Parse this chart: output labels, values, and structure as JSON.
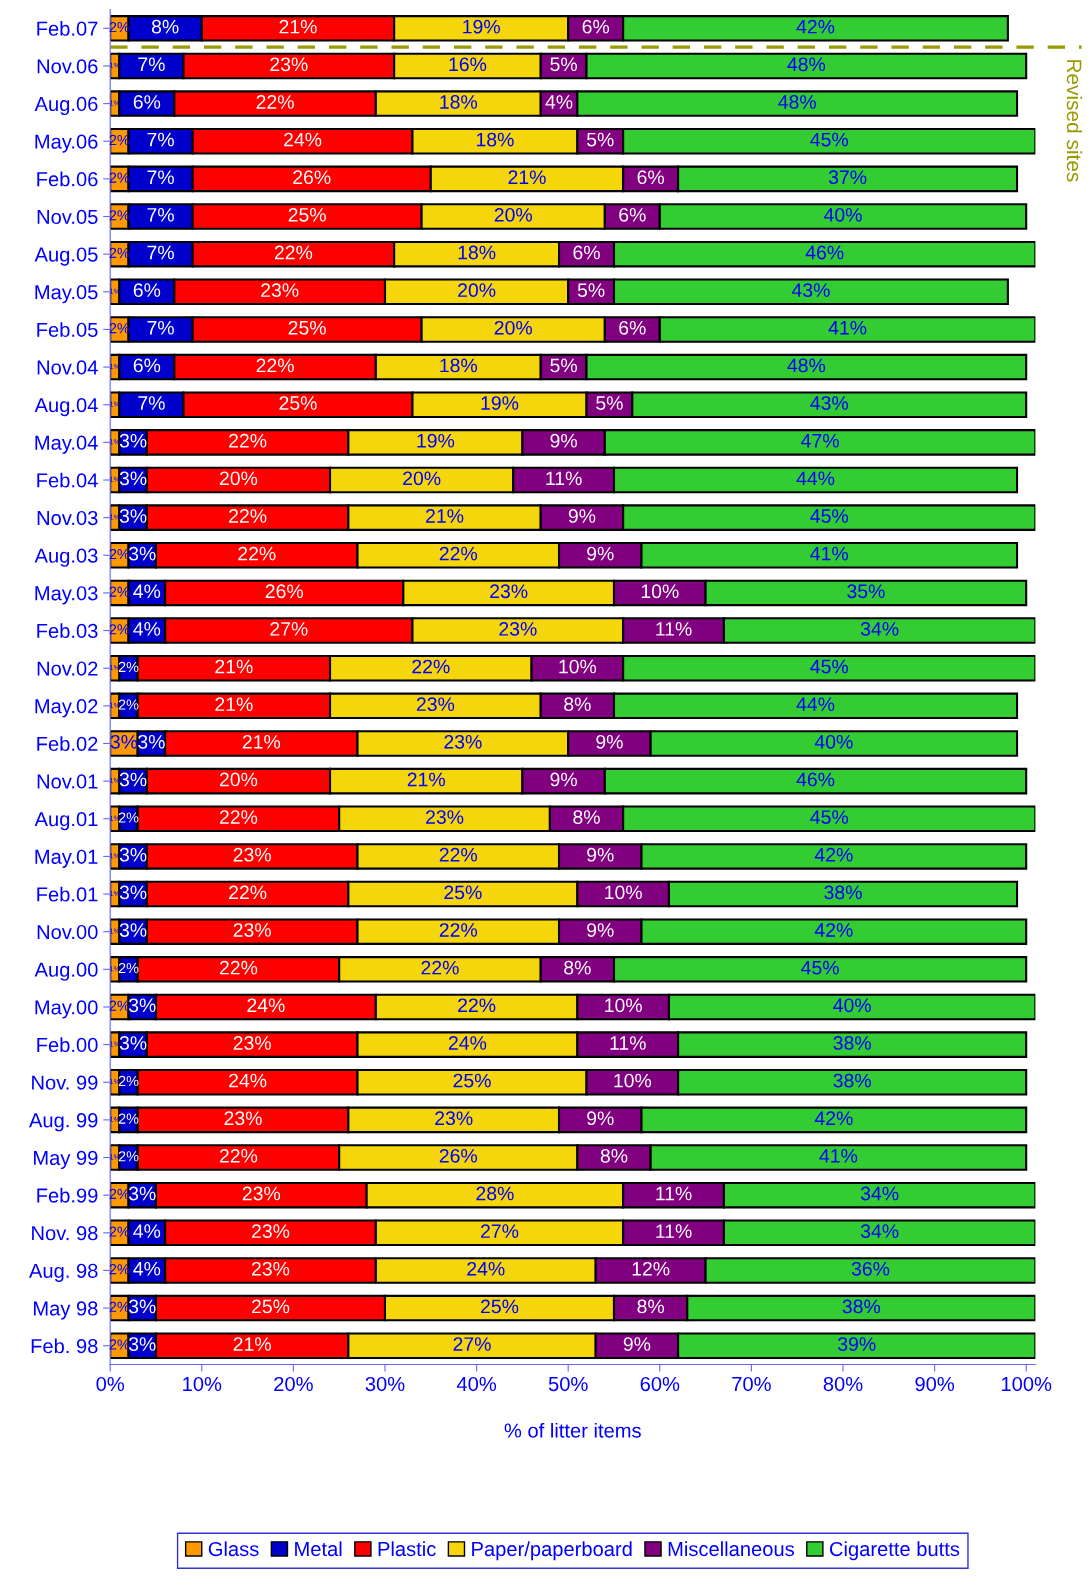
{
  "chart_data": {
    "type": "bar",
    "orientation": "horizontal",
    "stacked": true,
    "categories": [
      "Feb.07",
      "Nov.06",
      "Aug.06",
      "May.06",
      "Feb.06",
      "Nov.05",
      "Aug.05",
      "May.05",
      "Feb.05",
      "Nov.04",
      "Aug.04",
      "May.04",
      "Feb.04",
      "Nov.03",
      "Aug.03",
      "May.03",
      "Feb.03",
      "Nov.02",
      "May.02",
      "Feb.02",
      "Nov.01",
      "Aug.01",
      "May.01",
      "Feb.01",
      "Nov.00",
      "Aug.00",
      "May.00",
      "Feb.00",
      "Nov. 99",
      "Aug. 99",
      "May 99",
      "Feb.99",
      "Nov. 98",
      "Aug. 98",
      "May 98",
      "Feb. 98"
    ],
    "series": [
      {
        "name": "Glass",
        "color": "#ff9900",
        "values": [
          2,
          1,
          1,
          2,
          2,
          2,
          2,
          1,
          2,
          1,
          1,
          1,
          1,
          1,
          2,
          2,
          2,
          1,
          1,
          3,
          1,
          1,
          1,
          1,
          1,
          1,
          2,
          1,
          1,
          1,
          1,
          2,
          2,
          2,
          2,
          2
        ],
        "value_labels": [
          "2%",
          "1%",
          "1%",
          "2%",
          "2%",
          "2%",
          "2%",
          "1%",
          "2%",
          "1%",
          "1%",
          "1%",
          "1%",
          "1%",
          "2%",
          "2%",
          "2%",
          "1%",
          "1%",
          "3%",
          "1%",
          "1%",
          "1%",
          "1%",
          "1%",
          "1%",
          "2%",
          "1%",
          "1%",
          "1%",
          "1%",
          "2%",
          "2%",
          "2%",
          "2%",
          "2%"
        ]
      },
      {
        "name": "Metal",
        "color": "#0000cc",
        "values": [
          8,
          7,
          6,
          7,
          7,
          7,
          7,
          6,
          7,
          6,
          7,
          3,
          3,
          3,
          3,
          4,
          4,
          2,
          2,
          3,
          3,
          2,
          3,
          3,
          3,
          2,
          3,
          3,
          2,
          2,
          2,
          3,
          4,
          4,
          3,
          3
        ],
        "value_labels": [
          "8%",
          "7%",
          "6%",
          "7%",
          "7%",
          "7%",
          "7%",
          "6%",
          "7%",
          "6%",
          "7%",
          "3%",
          "3%",
          "3%",
          "3%",
          "4%",
          "4%",
          "2%",
          "2%",
          "3%",
          "3%",
          "2%",
          "3%",
          "3%",
          "3%",
          "2%",
          "3%",
          "3%",
          "2%",
          "2%",
          "2%",
          "3%",
          "4%",
          "4%",
          "3%",
          "3%"
        ]
      },
      {
        "name": "Plastic",
        "color": "#ff0000",
        "values": [
          21,
          23,
          22,
          24,
          26,
          25,
          22,
          23,
          25,
          22,
          25,
          22,
          20,
          22,
          22,
          26,
          27,
          21,
          21,
          21,
          20,
          22,
          23,
          22,
          23,
          22,
          24,
          23,
          24,
          23,
          22,
          23,
          23,
          23,
          25,
          21
        ],
        "value_labels": [
          "21%",
          "23%",
          "22%",
          "24%",
          "26%",
          "25%",
          "22%",
          "23%",
          "25%",
          "22%",
          "25%",
          "22%",
          "20%",
          "22%",
          "22%",
          "26%",
          "27%",
          "21%",
          "21%",
          "21%",
          "20%",
          "22%",
          "23%",
          "22%",
          "23%",
          "22%",
          "24%",
          "23%",
          "24%",
          "23%",
          "22%",
          "23%",
          "23%",
          "23%",
          "25%",
          "21%"
        ]
      },
      {
        "name": "Paper/paperboard",
        "color": "#f5d60a",
        "values": [
          19,
          16,
          18,
          18,
          21,
          20,
          18,
          20,
          20,
          18,
          19,
          19,
          20,
          21,
          22,
          23,
          23,
          22,
          23,
          23,
          21,
          23,
          22,
          25,
          22,
          22,
          22,
          24,
          25,
          23,
          26,
          28,
          27,
          24,
          25,
          27
        ],
        "value_labels": [
          "19%",
          "16%",
          "18%",
          "18%",
          "21%",
          "20%",
          "18%",
          "20%",
          "20%",
          "18%",
          "19%",
          "19%",
          "20%",
          "21%",
          "22%",
          "23%",
          "23%",
          "22%",
          "23%",
          "23%",
          "21%",
          "23%",
          "22%",
          "25%",
          "22%",
          "22%",
          "22%",
          "24%",
          "25%",
          "23%",
          "26%",
          "28%",
          "27%",
          "24%",
          "25%",
          "27%"
        ]
      },
      {
        "name": "Miscellaneous",
        "color": "#800080",
        "values": [
          6,
          5,
          4,
          5,
          6,
          6,
          6,
          5,
          6,
          5,
          5,
          9,
          11,
          9,
          9,
          10,
          11,
          10,
          8,
          9,
          9,
          8,
          9,
          10,
          9,
          8,
          10,
          11,
          10,
          9,
          8,
          11,
          11,
          12,
          8,
          9
        ],
        "value_labels": [
          "6%",
          "5%",
          "4%",
          "5%",
          "6%",
          "6%",
          "6%",
          "5%",
          "6%",
          "5%",
          "5%",
          "9%",
          "11%",
          "9%",
          "9%",
          "10%",
          "11%",
          "10%",
          "8%",
          "9%",
          "9%",
          "8%",
          "9%",
          "10%",
          "9%",
          "8%",
          "10%",
          "11%",
          "10%",
          "9%",
          "8%",
          "11%",
          "11%",
          "12%",
          "8%",
          "9%"
        ]
      },
      {
        "name": "Cigarette butts",
        "color": "#33cc33",
        "values": [
          42,
          48,
          48,
          45,
          37,
          40,
          46,
          43,
          41,
          48,
          43,
          47,
          44,
          45,
          41,
          35,
          34,
          45,
          44,
          40,
          46,
          45,
          42,
          38,
          42,
          45,
          40,
          38,
          38,
          42,
          41,
          34,
          34,
          36,
          38,
          39
        ],
        "value_labels": [
          "42%",
          "48%",
          "48%",
          "45%",
          "37%",
          "40%",
          "46%",
          "43%",
          "41%",
          "48%",
          "43%",
          "47%",
          "44%",
          "45%",
          "41%",
          "35%",
          "34%",
          "45%",
          "44%",
          "40%",
          "46%",
          "45%",
          "42%",
          "38%",
          "42%",
          "45%",
          "40%",
          "38%",
          "38%",
          "42%",
          "41%",
          "34%",
          "34%",
          "36%",
          "38%",
          "39%"
        ]
      }
    ],
    "xlabel": "% of litter items",
    "xlim": [
      0,
      101
    ],
    "xticks": [
      {
        "value": 0,
        "label": "0%"
      },
      {
        "value": 10,
        "label": "10%"
      },
      {
        "value": 20,
        "label": "20%"
      },
      {
        "value": 30,
        "label": "30%"
      },
      {
        "value": 40,
        "label": "40%"
      },
      {
        "value": 50,
        "label": "50%"
      },
      {
        "value": 60,
        "label": "60%"
      },
      {
        "value": 70,
        "label": "70%"
      },
      {
        "value": 80,
        "label": "80%"
      },
      {
        "value": 90,
        "label": "90%"
      },
      {
        "value": 100,
        "label": "100%"
      }
    ],
    "ref_lines": [
      {
        "axis": "y",
        "value": "Feb.07",
        "label": "Revised sites",
        "color": "#999900",
        "line_style": "dashed"
      }
    ],
    "legend": "bottom",
    "grid": false
  }
}
